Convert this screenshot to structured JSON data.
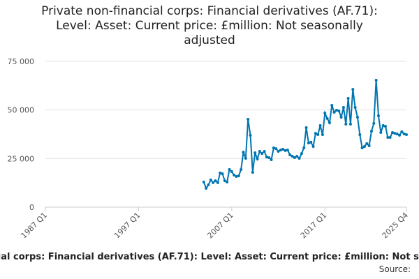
{
  "chart_data": {
    "type": "line",
    "title": "Private non-financial corps: Financial derivatives (AF.71): Level: Asset: Current price: £million: Not seasonally adjusted",
    "source": "Source:",
    "categories": [
      "1987 Q1",
      null,
      null,
      null,
      null,
      null,
      null,
      null,
      null,
      null,
      null,
      null,
      null,
      null,
      null,
      null,
      null,
      null,
      null,
      null,
      null,
      null,
      null,
      null,
      null,
      null,
      null,
      null,
      null,
      null,
      null,
      null,
      null,
      null,
      null,
      null,
      null,
      null,
      null,
      null,
      "1997 Q1",
      null,
      null,
      null,
      null,
      null,
      null,
      null,
      null,
      null,
      null,
      null,
      null,
      null,
      null,
      null,
      null,
      null,
      null,
      null,
      null,
      null,
      null,
      null,
      null,
      null,
      null,
      null,
      null,
      null,
      null,
      null,
      null,
      null,
      null,
      null,
      null,
      null,
      null,
      null,
      "2007 Q1",
      null,
      null,
      null,
      null,
      null,
      null,
      null,
      null,
      null,
      null,
      null,
      null,
      null,
      null,
      null,
      null,
      null,
      null,
      null,
      null,
      null,
      null,
      null,
      null,
      null,
      null,
      null,
      null,
      null,
      null,
      null,
      null,
      null,
      null,
      null,
      null,
      null,
      null,
      null,
      "2017 Q1",
      null,
      null,
      null,
      null,
      null,
      null,
      null,
      null,
      null,
      null,
      null,
      null,
      null,
      null,
      null,
      null,
      null,
      null,
      null,
      null,
      null,
      null,
      null,
      null,
      null,
      null,
      null,
      null,
      null,
      null,
      null,
      null,
      null,
      null,
      "2025 Q4"
    ],
    "series": [
      {
        "name": "Private non-financial corps: Financial derivatives (AF.71): Level: Asset: Current price: £million: Not seasonally adjusted",
        "color": "#0075b0",
        "values": [
          null,
          null,
          null,
          null,
          null,
          null,
          null,
          null,
          null,
          null,
          null,
          null,
          null,
          null,
          null,
          null,
          null,
          null,
          null,
          null,
          null,
          null,
          null,
          null,
          null,
          null,
          null,
          null,
          null,
          null,
          null,
          null,
          null,
          null,
          null,
          null,
          null,
          null,
          null,
          null,
          null,
          null,
          null,
          null,
          null,
          null,
          null,
          null,
          null,
          null,
          null,
          null,
          null,
          null,
          null,
          null,
          null,
          null,
          null,
          null,
          null,
          null,
          null,
          null,
          null,
          null,
          null,
          null,
          12900,
          9700,
          11500,
          14000,
          12600,
          13600,
          12600,
          17600,
          17200,
          13600,
          12900,
          19400,
          18300,
          16500,
          15800,
          16100,
          19400,
          28300,
          25100,
          45200,
          37000,
          17900,
          28000,
          24800,
          28700,
          27600,
          28700,
          25800,
          25500,
          24400,
          30500,
          30100,
          28700,
          29400,
          29800,
          29100,
          29400,
          26900,
          26200,
          25500,
          26200,
          25100,
          27600,
          30500,
          40900,
          33000,
          33400,
          31200,
          38000,
          37300,
          42000,
          37300,
          48400,
          45600,
          43400,
          52400,
          48800,
          49900,
          49500,
          46300,
          51300,
          42700,
          56000,
          42700,
          60600,
          51300,
          46300,
          37300,
          30500,
          31200,
          32700,
          31600,
          39100,
          43100,
          65300,
          47000,
          38400,
          42000,
          41600,
          35900,
          35900,
          38400,
          38000,
          37700,
          37000,
          38800,
          37700,
          37300
        ]
      }
    ],
    "ylim": [
      0,
      75000
    ],
    "yticks": [
      0,
      {
        "value": 25000,
        "label": "25 000"
      },
      {
        "value": 50000,
        "label": "50 000"
      },
      {
        "value": 75000,
        "label": "75 000"
      }
    ],
    "grid": true
  }
}
